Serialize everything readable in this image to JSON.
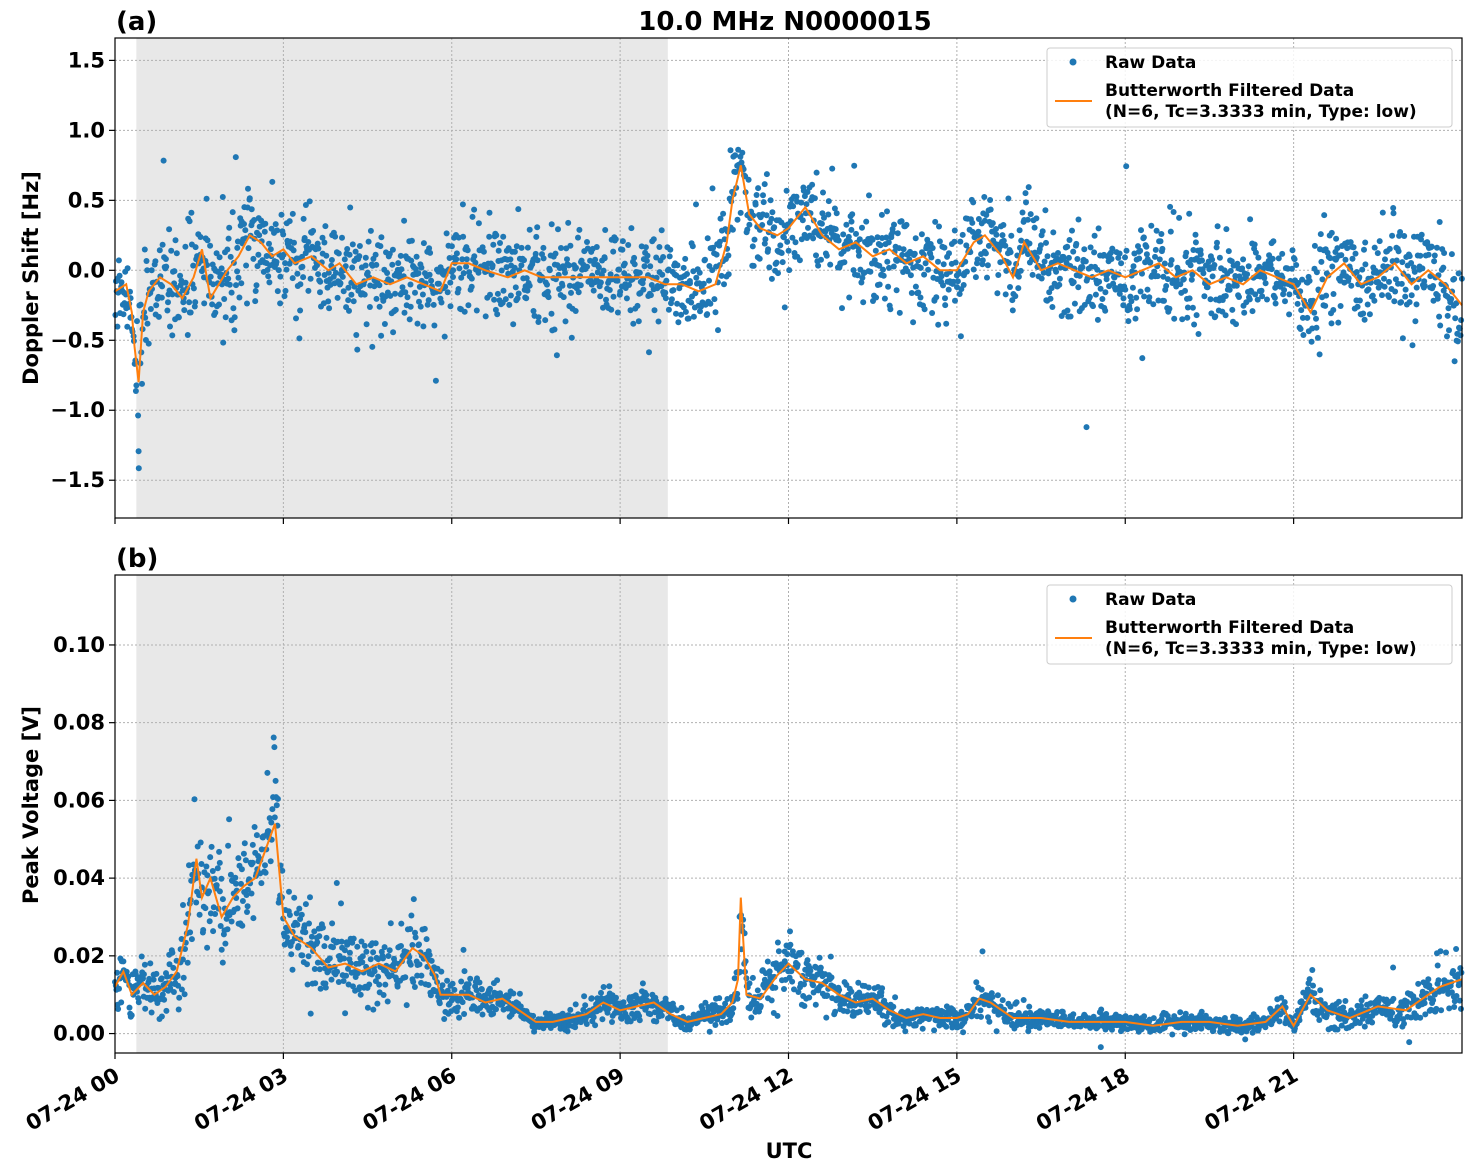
{
  "figure": {
    "title": "10.0 MHz N0000015",
    "xlabel": "UTC"
  },
  "colors": {
    "raw": "#1f77b4",
    "filtered": "#ff7f0e",
    "night_shade": "#e8e8e8",
    "grid": "#b0b0b0"
  },
  "legend": {
    "raw_label": "Raw Data",
    "filtered_label_line1": "Butterworth Filtered Data",
    "filtered_label_line2": "(N=6, Tc=3.3333 min, Type: low)",
    "placement": "upper right"
  },
  "chart_data": [
    {
      "type": "scatter",
      "panel": "(a)",
      "ylabel": "Doppler Shift [Hz]",
      "xlim_hours_utc": [
        0,
        24
      ],
      "ylim": [
        -1.77,
        1.66
      ],
      "x_tick_labels": [
        "07-24 00",
        "07-24 03",
        "07-24 06",
        "07-24 09",
        "07-24 12",
        "07-24 15",
        "07-24 18",
        "07-24 21"
      ],
      "x_tick_hours": [
        0,
        3,
        6,
        9,
        12,
        15,
        18,
        21
      ],
      "y_ticks": [
        -1.5,
        -1.0,
        -0.5,
        0.0,
        0.5,
        1.0,
        1.5
      ],
      "y_tick_labels": [
        "−1.5",
        "−1.0",
        "−0.5",
        "0.0",
        "0.5",
        "1.0",
        "1.5"
      ],
      "grid": true,
      "night_shading_hours": [
        0.38,
        9.85
      ],
      "series": [
        {
          "name": "Butterworth Filtered Data",
          "x_hours": [
            0,
            0.2,
            0.3,
            0.35,
            0.42,
            0.5,
            0.6,
            0.8,
            1.0,
            1.2,
            1.4,
            1.55,
            1.7,
            1.85,
            2.0,
            2.2,
            2.4,
            2.6,
            2.8,
            3.0,
            3.2,
            3.5,
            3.8,
            4.0,
            4.3,
            4.6,
            4.9,
            5.2,
            5.5,
            5.8,
            6.0,
            6.3,
            6.6,
            7.0,
            7.3,
            7.6,
            8.0,
            8.4,
            8.8,
            9.2,
            9.5,
            9.8,
            10.1,
            10.4,
            10.7,
            10.9,
            11.0,
            11.15,
            11.3,
            11.5,
            11.8,
            12.0,
            12.3,
            12.6,
            12.9,
            13.2,
            13.5,
            13.8,
            14.1,
            14.4,
            14.7,
            15.0,
            15.3,
            15.5,
            15.8,
            16.0,
            16.2,
            16.5,
            16.8,
            17.1,
            17.4,
            17.7,
            18.0,
            18.3,
            18.6,
            18.9,
            19.2,
            19.5,
            19.8,
            20.1,
            20.4,
            20.7,
            21.0,
            21.3,
            21.6,
            21.9,
            22.2,
            22.5,
            22.8,
            23.1,
            23.4,
            23.7,
            24.0
          ],
          "values": [
            -0.15,
            -0.1,
            -0.3,
            -0.55,
            -0.8,
            -0.3,
            -0.15,
            -0.05,
            -0.1,
            -0.2,
            -0.05,
            0.15,
            -0.2,
            -0.1,
            0.0,
            0.1,
            0.25,
            0.2,
            0.1,
            0.15,
            0.05,
            0.1,
            0.0,
            0.05,
            -0.1,
            -0.05,
            -0.1,
            -0.05,
            -0.1,
            -0.15,
            0.05,
            0.05,
            0.0,
            -0.05,
            0.0,
            -0.05,
            -0.05,
            -0.05,
            -0.05,
            -0.05,
            -0.05,
            -0.1,
            -0.1,
            -0.15,
            -0.1,
            0.2,
            0.5,
            0.75,
            0.4,
            0.3,
            0.25,
            0.3,
            0.45,
            0.25,
            0.15,
            0.2,
            0.1,
            0.15,
            0.05,
            0.1,
            0.0,
            0.0,
            0.2,
            0.25,
            0.1,
            -0.05,
            0.2,
            0.0,
            0.05,
            0.0,
            -0.05,
            0.0,
            -0.05,
            0.0,
            0.05,
            -0.05,
            0.0,
            -0.1,
            -0.05,
            -0.1,
            0.0,
            -0.05,
            -0.1,
            -0.3,
            -0.05,
            0.05,
            -0.1,
            -0.05,
            0.05,
            -0.1,
            0.0,
            -0.1,
            -0.25
          ]
        },
        {
          "name": "Raw Data",
          "spread_half_width": [
            0.3,
            0.3,
            0.35,
            0.5,
            0.6,
            0.45,
            0.3,
            0.28,
            0.3,
            0.35,
            0.35,
            0.35,
            0.35,
            0.35,
            0.35,
            0.35,
            0.35,
            0.32,
            0.3,
            0.3,
            0.3,
            0.3,
            0.3,
            0.3,
            0.3,
            0.3,
            0.3,
            0.3,
            0.3,
            0.3,
            0.3,
            0.3,
            0.3,
            0.3,
            0.3,
            0.3,
            0.3,
            0.3,
            0.3,
            0.3,
            0.3,
            0.3,
            0.3,
            0.32,
            0.3,
            0.35,
            0.35,
            0.3,
            0.3,
            0.3,
            0.3,
            0.3,
            0.3,
            0.3,
            0.3,
            0.3,
            0.3,
            0.3,
            0.3,
            0.3,
            0.3,
            0.3,
            0.3,
            0.3,
            0.3,
            0.3,
            0.3,
            0.3,
            0.3,
            0.3,
            0.3,
            0.3,
            0.3,
            0.3,
            0.3,
            0.3,
            0.3,
            0.3,
            0.3,
            0.3,
            0.3,
            0.3,
            0.3,
            0.3,
            0.3,
            0.3,
            0.3,
            0.3,
            0.3,
            0.3,
            0.3,
            0.3,
            0.3
          ],
          "points_per_hour": 90
        }
      ]
    },
    {
      "type": "scatter",
      "panel": "(b)",
      "ylabel": "Peak Voltage [V]",
      "xlim_hours_utc": [
        0,
        24
      ],
      "ylim": [
        -0.005,
        0.118
      ],
      "x_tick_labels": [
        "07-24 00",
        "07-24 03",
        "07-24 06",
        "07-24 09",
        "07-24 12",
        "07-24 15",
        "07-24 18",
        "07-24 21"
      ],
      "x_tick_hours": [
        0,
        3,
        6,
        9,
        12,
        15,
        18,
        21
      ],
      "y_ticks": [
        0.0,
        0.02,
        0.04,
        0.06,
        0.08,
        0.1
      ],
      "y_tick_labels": [
        "0.00",
        "0.02",
        "0.04",
        "0.06",
        "0.08",
        "0.10"
      ],
      "grid": true,
      "night_shading_hours": [
        0.38,
        9.85
      ],
      "series": [
        {
          "name": "Butterworth Filtered Data",
          "x_hours": [
            0,
            0.15,
            0.3,
            0.5,
            0.7,
            0.9,
            1.1,
            1.3,
            1.45,
            1.55,
            1.7,
            1.9,
            2.1,
            2.3,
            2.5,
            2.7,
            2.85,
            3.0,
            3.2,
            3.5,
            3.8,
            4.1,
            4.4,
            4.7,
            5.0,
            5.3,
            5.5,
            5.7,
            5.8,
            6.0,
            6.3,
            6.6,
            6.9,
            7.2,
            7.5,
            7.8,
            8.1,
            8.4,
            8.7,
            9.0,
            9.3,
            9.6,
            9.9,
            10.2,
            10.5,
            10.8,
            11.0,
            11.1,
            11.15,
            11.25,
            11.5,
            11.8,
            12.0,
            12.3,
            12.6,
            12.9,
            13.2,
            13.5,
            13.8,
            14.1,
            14.4,
            14.7,
            15.0,
            15.2,
            15.4,
            15.6,
            15.8,
            16.0,
            16.5,
            17.0,
            17.5,
            18.0,
            18.5,
            19.0,
            19.5,
            20.0,
            20.5,
            20.8,
            21.0,
            21.3,
            21.6,
            22.0,
            22.5,
            23.0,
            23.3,
            23.6,
            24.0
          ],
          "values": [
            0.012,
            0.016,
            0.01,
            0.013,
            0.01,
            0.012,
            0.016,
            0.028,
            0.045,
            0.035,
            0.04,
            0.03,
            0.035,
            0.038,
            0.04,
            0.048,
            0.054,
            0.03,
            0.025,
            0.022,
            0.017,
            0.018,
            0.016,
            0.018,
            0.016,
            0.022,
            0.02,
            0.015,
            0.01,
            0.01,
            0.01,
            0.008,
            0.009,
            0.006,
            0.003,
            0.003,
            0.004,
            0.005,
            0.008,
            0.006,
            0.007,
            0.008,
            0.005,
            0.003,
            0.004,
            0.005,
            0.008,
            0.014,
            0.035,
            0.01,
            0.009,
            0.015,
            0.018,
            0.014,
            0.013,
            0.01,
            0.008,
            0.009,
            0.006,
            0.004,
            0.005,
            0.004,
            0.004,
            0.005,
            0.009,
            0.008,
            0.006,
            0.004,
            0.004,
            0.003,
            0.003,
            0.003,
            0.002,
            0.003,
            0.003,
            0.002,
            0.003,
            0.007,
            0.002,
            0.01,
            0.006,
            0.004,
            0.007,
            0.006,
            0.009,
            0.012,
            0.014
          ]
        },
        {
          "name": "Raw Data",
          "spread_half_width": [
            0.006,
            0.006,
            0.006,
            0.006,
            0.006,
            0.007,
            0.008,
            0.012,
            0.016,
            0.014,
            0.014,
            0.012,
            0.012,
            0.013,
            0.013,
            0.016,
            0.018,
            0.012,
            0.01,
            0.01,
            0.009,
            0.009,
            0.009,
            0.009,
            0.009,
            0.01,
            0.01,
            0.007,
            0.005,
            0.005,
            0.005,
            0.004,
            0.004,
            0.003,
            0.002,
            0.002,
            0.003,
            0.003,
            0.004,
            0.003,
            0.003,
            0.004,
            0.003,
            0.002,
            0.003,
            0.003,
            0.004,
            0.008,
            0.01,
            0.005,
            0.005,
            0.007,
            0.008,
            0.007,
            0.006,
            0.005,
            0.004,
            0.004,
            0.003,
            0.003,
            0.003,
            0.003,
            0.003,
            0.003,
            0.004,
            0.004,
            0.003,
            0.003,
            0.003,
            0.002,
            0.002,
            0.002,
            0.002,
            0.002,
            0.002,
            0.002,
            0.002,
            0.003,
            0.002,
            0.005,
            0.004,
            0.003,
            0.004,
            0.004,
            0.005,
            0.006,
            0.006
          ],
          "points_per_hour": 90
        }
      ]
    }
  ]
}
